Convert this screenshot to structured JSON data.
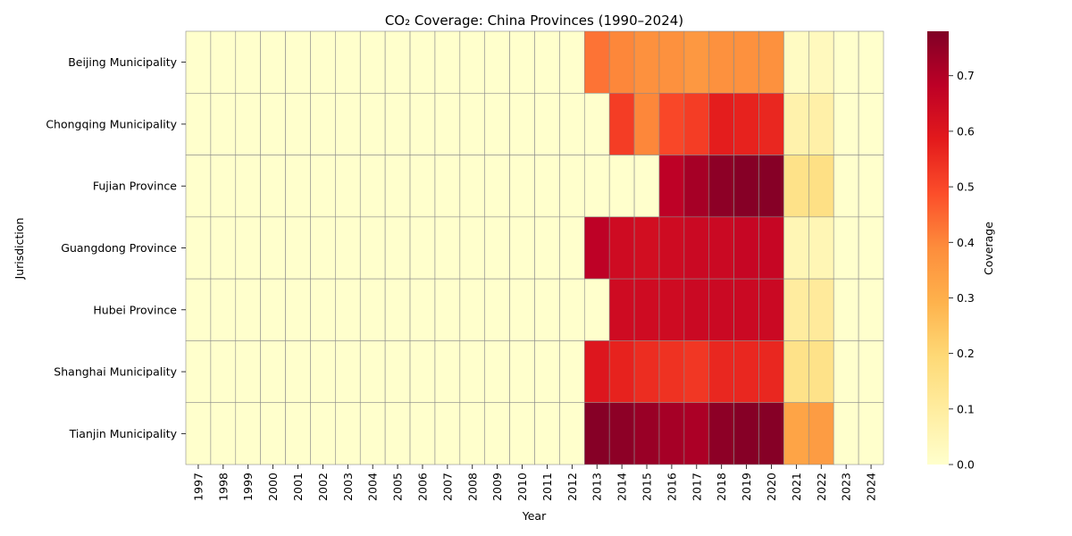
{
  "chart_data": {
    "type": "heatmap",
    "title": "CO₂ Coverage: China Provinces (1990–2024)",
    "xlabel": "Year",
    "ylabel": "Jurisdiction",
    "colorbar_label": "Coverage",
    "colorbar_range": [
      0,
      0.78
    ],
    "colorbar_ticks": [
      "0.0",
      "0.1",
      "0.2",
      "0.3",
      "0.4",
      "0.5",
      "0.6",
      "0.7"
    ],
    "colormap": "YlOrRd",
    "x": [
      "1997",
      "1998",
      "1999",
      "2000",
      "2001",
      "2002",
      "2003",
      "2004",
      "2005",
      "2006",
      "2007",
      "2008",
      "2009",
      "2010",
      "2011",
      "2012",
      "2013",
      "2014",
      "2015",
      "2016",
      "2017",
      "2018",
      "2019",
      "2020",
      "2021",
      "2022",
      "2023",
      "2024"
    ],
    "y": [
      "Beijing Municipality",
      "Chongqing Municipality",
      "Fujian Province",
      "Guangdong Province",
      "Hubei Province",
      "Shanghai Municipality",
      "Tianjin Municipality"
    ],
    "values": [
      [
        0,
        0,
        0,
        0,
        0,
        0,
        0,
        0,
        0,
        0,
        0,
        0,
        0,
        0,
        0,
        0,
        0.43,
        0.4,
        0.38,
        0.38,
        0.36,
        0.38,
        0.38,
        0.38,
        0.02,
        0.03,
        0,
        0
      ],
      [
        0,
        0,
        0,
        0,
        0,
        0,
        0,
        0,
        0,
        0,
        0,
        0,
        0,
        0,
        0,
        0,
        0,
        0.52,
        0.4,
        0.5,
        0.52,
        0.58,
        0.57,
        0.56,
        0.07,
        0.08,
        0,
        0
      ],
      [
        0,
        0,
        0,
        0,
        0,
        0,
        0,
        0,
        0,
        0,
        0,
        0,
        0,
        0,
        0,
        0,
        0,
        0,
        0,
        0.68,
        0.72,
        0.76,
        0.77,
        0.77,
        0.15,
        0.16,
        0,
        0
      ],
      [
        0,
        0,
        0,
        0,
        0,
        0,
        0,
        0,
        0,
        0,
        0,
        0,
        0,
        0,
        0,
        0,
        0.68,
        0.64,
        0.63,
        0.64,
        0.65,
        0.65,
        0.66,
        0.66,
        0.05,
        0.05,
        0,
        0
      ],
      [
        0,
        0,
        0,
        0,
        0,
        0,
        0,
        0,
        0,
        0,
        0,
        0,
        0,
        0,
        0,
        0,
        0,
        0.64,
        0.64,
        0.64,
        0.65,
        0.65,
        0.65,
        0.65,
        0.1,
        0.11,
        0,
        0
      ],
      [
        0,
        0,
        0,
        0,
        0,
        0,
        0,
        0,
        0,
        0,
        0,
        0,
        0,
        0,
        0,
        0,
        0.6,
        0.57,
        0.55,
        0.54,
        0.53,
        0.56,
        0.56,
        0.56,
        0.15,
        0.15,
        0,
        0
      ],
      [
        0,
        0,
        0,
        0,
        0,
        0,
        0,
        0,
        0,
        0,
        0,
        0,
        0,
        0,
        0,
        0,
        0.77,
        0.76,
        0.74,
        0.72,
        0.71,
        0.76,
        0.77,
        0.77,
        0.33,
        0.35,
        0,
        0
      ]
    ]
  }
}
